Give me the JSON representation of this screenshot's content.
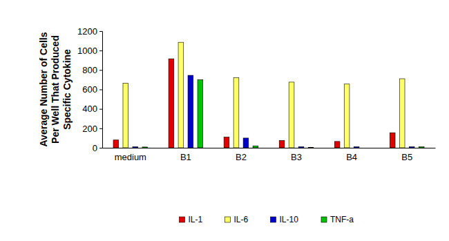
{
  "chart_data": {
    "type": "bar",
    "y_label": "Average Number of Cells Per Well That Produced Specific Cytokine",
    "categories": [
      "medium",
      "B1",
      "B2",
      "B3",
      "B4",
      "B5"
    ],
    "series": [
      {
        "name": "IL-1",
        "color": "#e00000",
        "values": [
          80,
          915,
          110,
          75,
          65,
          155
        ]
      },
      {
        "name": "IL-6",
        "color": "#ffff66",
        "values": [
          665,
          1085,
          720,
          675,
          655,
          710
        ]
      },
      {
        "name": "IL-10",
        "color": "#0000cc",
        "values": [
          10,
          745,
          100,
          10,
          10,
          10
        ]
      },
      {
        "name": "TNF-a",
        "color": "#00c000",
        "values": [
          8,
          700,
          20,
          5,
          0,
          10
        ]
      }
    ],
    "ylim": [
      0,
      1200
    ],
    "yticks": [
      0,
      200,
      400,
      600,
      800,
      1000,
      1200
    ],
    "grid": false,
    "legend": "bottom"
  }
}
